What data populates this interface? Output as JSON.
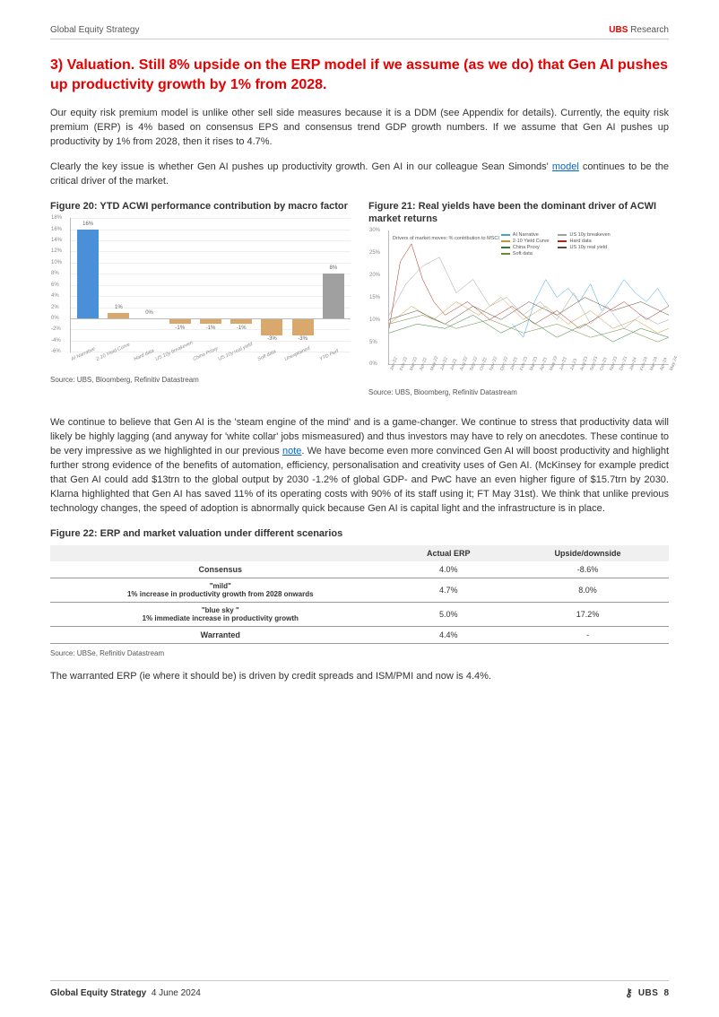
{
  "header": {
    "left": "Global Equity Strategy",
    "right_brand": "UBS",
    "right_text": " Research"
  },
  "section_title": "3) Valuation. Still 8% upside on the ERP model if we assume (as we do) that Gen AI pushes up productivity growth by 1% from 2028.",
  "para1": "Our equity risk premium model is unlike other sell side measures because it is a DDM (see Appendix for details). Currently, the equity risk premium (ERP) is 4% based on consensus EPS and consensus trend GDP growth numbers. If we assume that Gen AI pushes up productivity by 1% from 2028, then it rises to 4.7%.",
  "para2_a": "Clearly the key issue is whether Gen AI pushes up productivity growth. Gen AI in our colleague Sean Simonds' ",
  "para2_link": "model",
  "para2_b": " continues to be the critical driver of the market.",
  "fig20": {
    "title": "Figure 20: YTD ACWI performance contribution by macro factor",
    "source": "Source: UBS, Bloomberg, Refinitiv Datastream",
    "type": "bar",
    "ylim": [
      -6,
      18
    ],
    "ytick_step": 2,
    "categories": [
      "AI Narrative",
      "2-10 Yield Curve",
      "Hard data",
      "US 10y breakeven",
      "China Proxy",
      "US 10y real yield",
      "Soft data",
      "Unexplained",
      "YTD Perf"
    ],
    "values": [
      16,
      1,
      0,
      -1,
      -1,
      -1,
      -3,
      -3,
      8
    ],
    "labels": [
      "16%",
      "1%",
      "0%",
      "-1%",
      "-1%",
      "-1%",
      "-3%",
      "-3%",
      "8%"
    ],
    "colors": [
      "#4a90d9",
      "#d9a86c",
      "#d9a86c",
      "#d9a86c",
      "#d9a86c",
      "#d9a86c",
      "#d9a86c",
      "#d9a86c",
      "#a0a0a0"
    ],
    "grid_color": "#eeeeee",
    "label_fontsize": 6
  },
  "fig21": {
    "title": "Figure 21: Real yields have been the dominant driver of ACWI market returns",
    "source": "Source: UBS, Bloomberg, Refinitiv Datastream",
    "type": "line",
    "ylim": [
      0,
      30
    ],
    "ytick_step": 5,
    "yticks": [
      "0%",
      "5%",
      "10%",
      "15%",
      "20%",
      "25%",
      "30%"
    ],
    "xlabels": [
      "Jan-22",
      "Feb-22",
      "Mar-22",
      "Apr-22",
      "May-22",
      "Jun-22",
      "Jul-22",
      "Aug-22",
      "Sep-22",
      "Oct-22",
      "Nov-22",
      "Dec-22",
      "Jan-23",
      "Feb-23",
      "Mar-23",
      "Apr-23",
      "May-23",
      "Jun-23",
      "Jul-23",
      "Aug-23",
      "Sep-23",
      "Oct-23",
      "Nov-23",
      "Dec-23",
      "Jan-24",
      "Feb-24",
      "Mar-24",
      "Apr-24",
      "May-24"
    ],
    "annotation": "Drivers of market moves: % contribution to MSCI",
    "legend": [
      {
        "label": "AI Narrative",
        "color": "#3aa6dd"
      },
      {
        "label": "US 10y breakeven",
        "color": "#9aa0a6"
      },
      {
        "label": "2-10 Yield Curve",
        "color": "#c09a3a"
      },
      {
        "label": "Hard data",
        "color": "#b02418"
      },
      {
        "label": "China Proxy",
        "color": "#2e7d32"
      },
      {
        "label": "US 10y real yield",
        "color": "#5a4a3a"
      },
      {
        "label": "Soft data",
        "color": "#6a8a3a"
      }
    ],
    "series": {
      "ai": {
        "color": "#3aa6dd",
        "points": [
          [
            44,
            9
          ],
          [
            48,
            6
          ],
          [
            52,
            14
          ],
          [
            56,
            19
          ],
          [
            60,
            15
          ],
          [
            64,
            17
          ],
          [
            68,
            14
          ],
          [
            72,
            18
          ],
          [
            76,
            12
          ],
          [
            80,
            15
          ],
          [
            84,
            19
          ],
          [
            88,
            16
          ],
          [
            92,
            14
          ],
          [
            96,
            17
          ],
          [
            100,
            13
          ]
        ]
      },
      "breakeven": {
        "color": "#9aa0a6",
        "points": [
          [
            0,
            11
          ],
          [
            6,
            18
          ],
          [
            12,
            22
          ],
          [
            18,
            24
          ],
          [
            24,
            16
          ],
          [
            30,
            19
          ],
          [
            36,
            13
          ],
          [
            42,
            15
          ],
          [
            48,
            11
          ],
          [
            54,
            14
          ],
          [
            60,
            10
          ],
          [
            66,
            16
          ],
          [
            72,
            9
          ],
          [
            78,
            13
          ],
          [
            84,
            8
          ],
          [
            90,
            11
          ],
          [
            96,
            9
          ],
          [
            100,
            10
          ]
        ]
      },
      "curve": {
        "color": "#c09a3a",
        "points": [
          [
            0,
            9
          ],
          [
            8,
            13
          ],
          [
            16,
            10
          ],
          [
            24,
            14
          ],
          [
            32,
            11
          ],
          [
            40,
            15
          ],
          [
            48,
            10
          ],
          [
            56,
            13
          ],
          [
            64,
            9
          ],
          [
            72,
            12
          ],
          [
            80,
            8
          ],
          [
            88,
            10
          ],
          [
            96,
            7
          ],
          [
            100,
            8
          ]
        ]
      },
      "hard": {
        "color": "#b02418",
        "points": [
          [
            0,
            8
          ],
          [
            4,
            23
          ],
          [
            8,
            27
          ],
          [
            12,
            19
          ],
          [
            16,
            14
          ],
          [
            20,
            11
          ],
          [
            28,
            14
          ],
          [
            36,
            10
          ],
          [
            44,
            13
          ],
          [
            52,
            9
          ],
          [
            60,
            12
          ],
          [
            68,
            8
          ],
          [
            76,
            11
          ],
          [
            84,
            14
          ],
          [
            92,
            10
          ],
          [
            100,
            13
          ]
        ]
      },
      "china": {
        "color": "#2e7d32",
        "points": [
          [
            0,
            7
          ],
          [
            10,
            9
          ],
          [
            20,
            8
          ],
          [
            30,
            11
          ],
          [
            40,
            7
          ],
          [
            50,
            10
          ],
          [
            60,
            6
          ],
          [
            70,
            9
          ],
          [
            80,
            5
          ],
          [
            90,
            8
          ],
          [
            100,
            6
          ]
        ]
      },
      "realyield": {
        "color": "#5a4a3a",
        "points": [
          [
            0,
            10
          ],
          [
            10,
            12
          ],
          [
            20,
            9
          ],
          [
            30,
            13
          ],
          [
            40,
            10
          ],
          [
            50,
            14
          ],
          [
            60,
            11
          ],
          [
            70,
            15
          ],
          [
            80,
            12
          ],
          [
            90,
            14
          ],
          [
            100,
            11
          ]
        ]
      },
      "soft": {
        "color": "#6a8a3a",
        "points": [
          [
            0,
            9
          ],
          [
            12,
            11
          ],
          [
            24,
            8
          ],
          [
            36,
            10
          ],
          [
            48,
            7
          ],
          [
            60,
            9
          ],
          [
            72,
            6
          ],
          [
            84,
            8
          ],
          [
            96,
            5
          ],
          [
            100,
            6
          ]
        ]
      }
    }
  },
  "para3_a": "We continue to believe that Gen AI is the 'steam engine of the mind' and is a game-changer. We continue to stress that productivity data will likely be highly lagging (and anyway for 'white collar' jobs mismeasured) and thus investors may have to rely on anecdotes. These continue to be very impressive as we highlighted in our previous ",
  "para3_link": "note",
  "para3_b": ". We have become even more convinced Gen AI will boost productivity and highlight further strong evidence of the benefits of automation, efficiency, personalisation and creativity uses of Gen AI. (McKinsey for example predict that Gen AI could add $13trn to the global output by 2030 -1.2% of global GDP- and PwC have an even higher figure of $15.7trn by 2030. Klarna highlighted that Gen AI has saved 11% of its operating costs with 90% of its staff using it; FT May 31st). We think that unlike previous technology changes, the speed of adoption is abnormally quick because Gen AI is capital light and the infrastructure is in place.",
  "fig22": {
    "title": "Figure 22: ERP and market valuation under different scenarios",
    "source": "Source: UBSe, Refinitiv Datastream",
    "columns": [
      "",
      "Actual ERP",
      "Upside/downside"
    ],
    "rows": [
      {
        "scenario": "Consensus",
        "sub": "",
        "erp": "4.0%",
        "upside": "-8.6%"
      },
      {
        "scenario": "\"mild\"",
        "sub": "1% increase in productivity growth from 2028 onwards",
        "erp": "4.7%",
        "upside": "8.0%"
      },
      {
        "scenario": "\"blue sky \"",
        "sub": "1% immediate increase in productivity growth",
        "erp": "5.0%",
        "upside": "17.2%"
      },
      {
        "scenario": "Warranted",
        "sub": "",
        "erp": "4.4%",
        "upside": "-"
      }
    ]
  },
  "para4": "The warranted ERP (ie where it should be) is driven by credit spreads and ISM/PMI and now is 4.4%.",
  "footer": {
    "title": "Global Equity Strategy",
    "date": "4 June 2024",
    "brand": "UBS",
    "page": "8"
  }
}
